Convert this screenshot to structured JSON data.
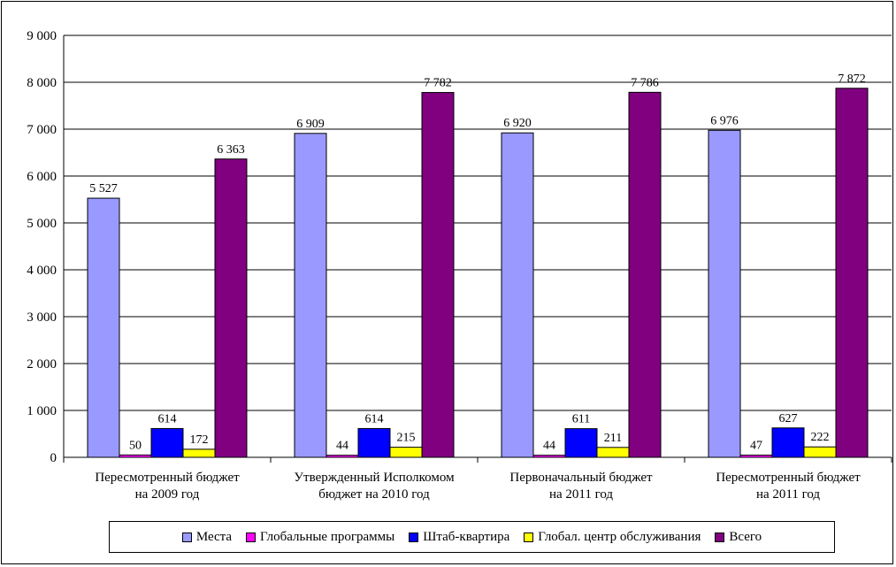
{
  "chart_data": {
    "type": "bar",
    "title": "",
    "xlabel": "",
    "ylabel": "",
    "ylim": [
      0,
      9000
    ],
    "yticks": [
      "0",
      "1 000",
      "2 000",
      "3 000",
      "4 000",
      "5 000",
      "6 000",
      "7 000",
      "8 000",
      "9 000"
    ],
    "grid": true,
    "legend_position": "bottom",
    "categories": [
      [
        "Пересмотренный бюджет",
        "на 2009 год"
      ],
      [
        "Утвержденный Исполкомом",
        "бюджет на 2010 год"
      ],
      [
        "Первоначальный бюджет",
        "на 2011 год"
      ],
      [
        "Пересмотренный бюджет",
        "на 2011 год"
      ]
    ],
    "series": [
      {
        "name": "Места",
        "color": "#9999FF",
        "values": [
          5527,
          6909,
          6920,
          6976
        ],
        "labels": [
          "5 527",
          "6 909",
          "6 920",
          "6 976"
        ]
      },
      {
        "name": "Глобальные программы",
        "color": "#FF00FF",
        "values": [
          50,
          44,
          44,
          47
        ],
        "labels": [
          "50",
          "44",
          "44",
          "47"
        ]
      },
      {
        "name": "Штаб-квартира",
        "color": "#0000FF",
        "values": [
          614,
          614,
          611,
          627
        ],
        "labels": [
          "614",
          "614",
          "611",
          "627"
        ]
      },
      {
        "name": "Глобал. центр обслуживания",
        "color": "#FFFF00",
        "values": [
          172,
          215,
          211,
          222
        ],
        "labels": [
          "172",
          "215",
          "211",
          "222"
        ]
      },
      {
        "name": "Всего",
        "color": "#800080",
        "values": [
          6363,
          7782,
          7786,
          7872
        ],
        "labels": [
          "6 363",
          "7 782",
          "7 786",
          "7 872"
        ]
      }
    ]
  }
}
